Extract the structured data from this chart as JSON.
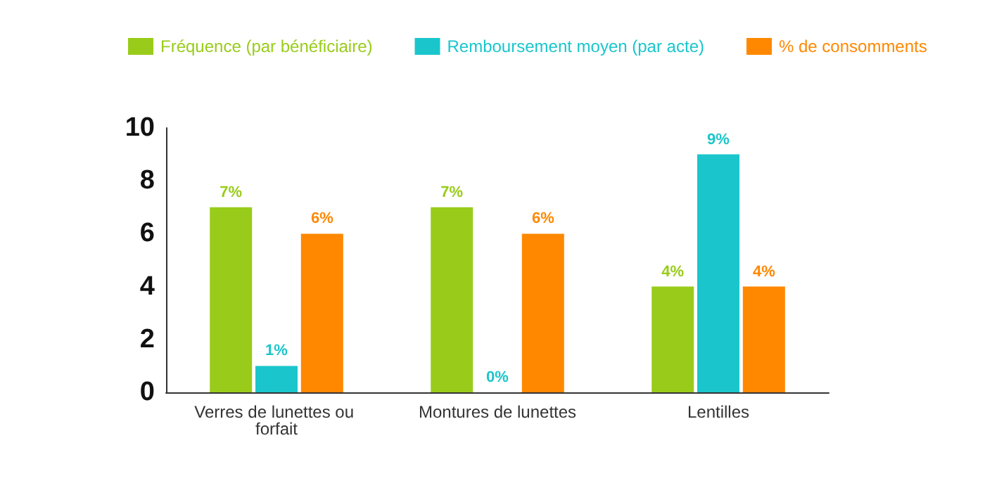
{
  "chart_data": {
    "type": "bar",
    "categories": [
      "Verres de lunettes ou forfait",
      "Montures de lunettes",
      "Lentilles"
    ],
    "series": [
      {
        "name": "Fréquence (par bénéficiaire)",
        "color": "#99cc1a",
        "values": [
          7,
          7,
          4
        ],
        "value_labels": [
          "7%",
          "7%",
          "4%"
        ]
      },
      {
        "name": "Remboursement moyen (par acte)",
        "color": "#1ac6cc",
        "values": [
          1,
          0,
          9
        ],
        "value_labels": [
          "1%",
          "0%",
          "9%"
        ]
      },
      {
        "name": "% de consomments",
        "color": "#ff8800",
        "values": [
          6,
          6,
          4
        ],
        "value_labels": [
          "6%",
          "6%",
          "4%"
        ]
      }
    ],
    "ylim": [
      0,
      10
    ],
    "yticks": [
      0,
      2,
      4,
      6,
      8,
      10
    ],
    "grid": false,
    "legend": "top left"
  }
}
